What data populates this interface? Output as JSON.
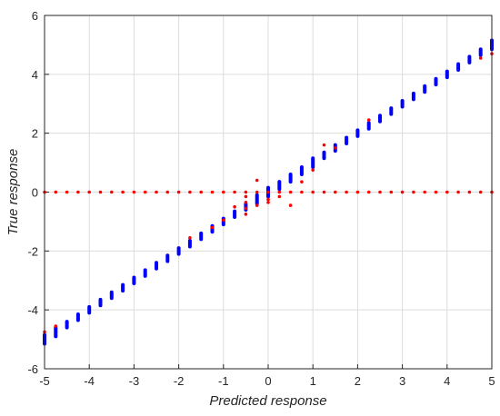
{
  "chart_data": {
    "type": "scatter",
    "xlabel": "Predicted response",
    "ylabel": "True response",
    "xlim": [
      -5,
      5
    ],
    "ylim": [
      -6,
      6
    ],
    "xticks": [
      -5,
      -4,
      -3,
      -2,
      -1,
      0,
      1,
      2,
      3,
      4,
      5
    ],
    "yticks": [
      -6,
      -4,
      -2,
      0,
      2,
      4,
      6
    ],
    "grid": true,
    "colors": {
      "blue": "#0000ff",
      "red": "#ff0000"
    },
    "series": [
      {
        "color": "blue",
        "clusters": [
          {
            "x": -5.0,
            "ymin": -5.15,
            "ymax": -4.85
          },
          {
            "x": -4.75,
            "ymin": -4.9,
            "ymax": -4.6
          },
          {
            "x": -4.5,
            "ymin": -4.6,
            "ymax": -4.4
          },
          {
            "x": -4.25,
            "ymin": -4.35,
            "ymax": -4.15
          },
          {
            "x": -4.0,
            "ymin": -4.1,
            "ymax": -3.9
          },
          {
            "x": -3.75,
            "ymin": -3.85,
            "ymax": -3.65
          },
          {
            "x": -3.5,
            "ymin": -3.6,
            "ymax": -3.4
          },
          {
            "x": -3.25,
            "ymin": -3.35,
            "ymax": -3.15
          },
          {
            "x": -3.0,
            "ymin": -3.1,
            "ymax": -2.9
          },
          {
            "x": -2.75,
            "ymin": -2.85,
            "ymax": -2.65
          },
          {
            "x": -2.5,
            "ymin": -2.6,
            "ymax": -2.4
          },
          {
            "x": -2.25,
            "ymin": -2.35,
            "ymax": -2.15
          },
          {
            "x": -2.0,
            "ymin": -2.1,
            "ymax": -1.9
          },
          {
            "x": -1.75,
            "ymin": -1.85,
            "ymax": -1.65
          },
          {
            "x": -1.5,
            "ymin": -1.6,
            "ymax": -1.4
          },
          {
            "x": -1.25,
            "ymin": -1.35,
            "ymax": -1.15
          },
          {
            "x": -1.0,
            "ymin": -1.1,
            "ymax": -0.9
          },
          {
            "x": -0.75,
            "ymin": -0.85,
            "ymax": -0.65
          },
          {
            "x": -0.5,
            "ymin": -0.6,
            "ymax": -0.4
          },
          {
            "x": -0.25,
            "ymin": -0.4,
            "ymax": -0.1
          },
          {
            "x": 0.0,
            "ymin": -0.15,
            "ymax": 0.15
          },
          {
            "x": 0.25,
            "ymin": 0.1,
            "ymax": 0.35
          },
          {
            "x": 0.5,
            "ymin": 0.35,
            "ymax": 0.6
          },
          {
            "x": 0.75,
            "ymin": 0.6,
            "ymax": 0.85
          },
          {
            "x": 1.0,
            "ymin": 0.85,
            "ymax": 1.15
          },
          {
            "x": 1.25,
            "ymin": 1.15,
            "ymax": 1.35
          },
          {
            "x": 1.5,
            "ymin": 1.4,
            "ymax": 1.6
          },
          {
            "x": 1.75,
            "ymin": 1.65,
            "ymax": 1.85
          },
          {
            "x": 2.0,
            "ymin": 1.9,
            "ymax": 2.1
          },
          {
            "x": 2.25,
            "ymin": 2.15,
            "ymax": 2.35
          },
          {
            "x": 2.5,
            "ymin": 2.4,
            "ymax": 2.6
          },
          {
            "x": 2.75,
            "ymin": 2.65,
            "ymax": 2.85
          },
          {
            "x": 3.0,
            "ymin": 2.9,
            "ymax": 3.1
          },
          {
            "x": 3.25,
            "ymin": 3.15,
            "ymax": 3.35
          },
          {
            "x": 3.5,
            "ymin": 3.4,
            "ymax": 3.6
          },
          {
            "x": 3.75,
            "ymin": 3.65,
            "ymax": 3.85
          },
          {
            "x": 4.0,
            "ymin": 3.9,
            "ymax": 4.1
          },
          {
            "x": 4.25,
            "ymin": 4.15,
            "ymax": 4.35
          },
          {
            "x": 4.5,
            "ymin": 4.4,
            "ymax": 4.6
          },
          {
            "x": 4.75,
            "ymin": 4.65,
            "ymax": 4.85
          },
          {
            "x": 5.0,
            "ymin": 4.85,
            "ymax": 5.15
          }
        ]
      },
      {
        "color": "red",
        "points": [
          [
            -5.0,
            0
          ],
          [
            -4.75,
            0
          ],
          [
            -4.5,
            0
          ],
          [
            -4.25,
            0
          ],
          [
            -4.0,
            0
          ],
          [
            -3.75,
            0
          ],
          [
            -3.5,
            0
          ],
          [
            -3.25,
            0
          ],
          [
            -3.0,
            0
          ],
          [
            -2.75,
            0
          ],
          [
            -2.5,
            0
          ],
          [
            -2.25,
            0
          ],
          [
            -2.0,
            0
          ],
          [
            -1.75,
            0
          ],
          [
            -1.5,
            0
          ],
          [
            -1.25,
            0
          ],
          [
            -1.0,
            0
          ],
          [
            -0.75,
            0
          ],
          [
            -0.5,
            0
          ],
          [
            -0.25,
            0
          ],
          [
            0.0,
            0
          ],
          [
            0.25,
            0
          ],
          [
            0.5,
            0
          ],
          [
            0.75,
            0
          ],
          [
            1.0,
            0
          ],
          [
            1.25,
            0
          ],
          [
            1.5,
            0
          ],
          [
            1.75,
            0
          ],
          [
            2.0,
            0
          ],
          [
            2.25,
            0
          ],
          [
            2.5,
            0
          ],
          [
            2.75,
            0
          ],
          [
            3.0,
            0
          ],
          [
            3.25,
            0
          ],
          [
            3.5,
            0
          ],
          [
            3.75,
            0
          ],
          [
            4.0,
            0
          ],
          [
            4.25,
            0
          ],
          [
            4.5,
            0
          ],
          [
            4.75,
            0
          ],
          [
            5.0,
            0
          ],
          [
            -5.0,
            -4.75
          ],
          [
            -4.75,
            -4.55
          ],
          [
            -1.75,
            -1.55
          ],
          [
            -1.25,
            -1.2
          ],
          [
            -1.0,
            -0.95
          ],
          [
            -0.75,
            -0.5
          ],
          [
            -0.5,
            -0.15
          ],
          [
            -0.5,
            -0.35
          ],
          [
            -0.5,
            -0.55
          ],
          [
            -0.5,
            -0.75
          ],
          [
            -0.25,
            0.4
          ],
          [
            -0.25,
            -0.45
          ],
          [
            0.0,
            -0.25
          ],
          [
            0.0,
            -0.35
          ],
          [
            0.25,
            -0.15
          ],
          [
            0.5,
            -0.45
          ],
          [
            0.75,
            0.35
          ],
          [
            1.0,
            0.75
          ],
          [
            1.25,
            1.6
          ],
          [
            1.5,
            1.5
          ],
          [
            2.25,
            2.45
          ],
          [
            4.75,
            4.55
          ],
          [
            5.0,
            4.7
          ]
        ]
      }
    ]
  }
}
